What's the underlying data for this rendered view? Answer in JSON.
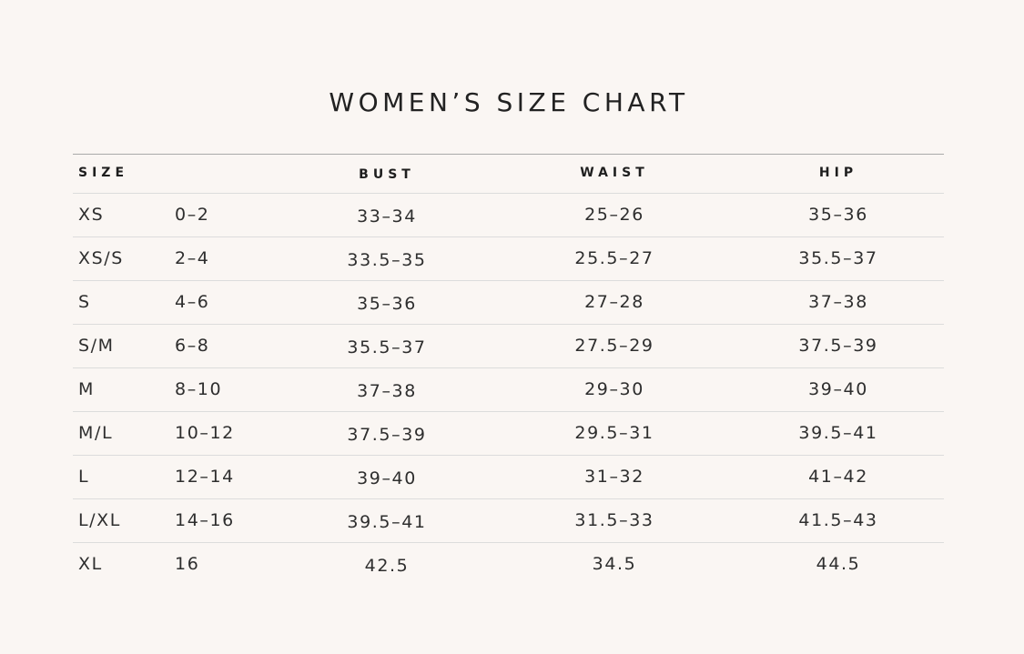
{
  "title": "WOMEN’S SIZE CHART",
  "headers": {
    "size": "SIZE",
    "bust": "BUST",
    "waist": "WAIST",
    "hip": "HIP"
  },
  "rows": [
    {
      "size": "XS",
      "us": "0–2",
      "bust": "33–34",
      "waist": "25–26",
      "hip": "35–36"
    },
    {
      "size": "XS/S",
      "us": "2–4",
      "bust": "33.5–35",
      "waist": "25.5–27",
      "hip": "35.5–37"
    },
    {
      "size": "S",
      "us": "4–6",
      "bust": "35–36",
      "waist": "27–28",
      "hip": "37–38"
    },
    {
      "size": "S/M",
      "us": "6–8",
      "bust": "35.5–37",
      "waist": "27.5–29",
      "hip": "37.5–39"
    },
    {
      "size": "M",
      "us": "8–10",
      "bust": "37–38",
      "waist": "29–30",
      "hip": "39–40"
    },
    {
      "size": "M/L",
      "us": "10–12",
      "bust": "37.5–39",
      "waist": "29.5–31",
      "hip": "39.5–41"
    },
    {
      "size": "L",
      "us": "12–14",
      "bust": "39–40",
      "waist": "31–32",
      "hip": "41–42"
    },
    {
      "size": "L/XL",
      "us": "14–16",
      "bust": "39.5–41",
      "waist": "31.5–33",
      "hip": "41.5–43"
    },
    {
      "size": "XL",
      "us": "16",
      "bust": "42.5",
      "waist": "34.5",
      "hip": "44.5"
    }
  ]
}
